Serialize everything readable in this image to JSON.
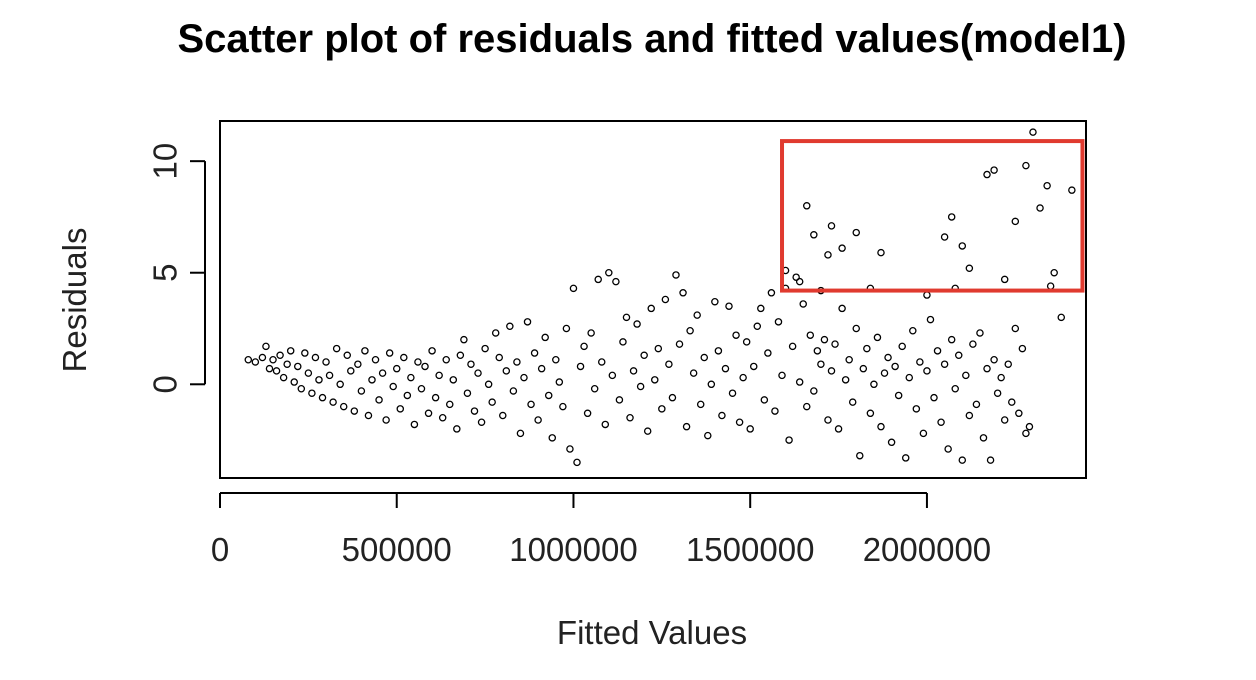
{
  "chart_data": {
    "type": "scatter",
    "title": "Scatter plot of residuals and fitted values(model1)",
    "xlabel": "Fitted Values",
    "ylabel": "Residuals",
    "xlim": [
      0,
      2450000
    ],
    "ylim": [
      -4.2,
      11.8
    ],
    "x_ticks": [
      0,
      500000,
      1000000,
      1500000,
      2000000
    ],
    "y_ticks": [
      0,
      5,
      10
    ],
    "x_tick_labels": [
      "0",
      "500000",
      "1000000",
      "1500000",
      "2000000"
    ],
    "y_tick_labels": [
      "0",
      "5",
      "10"
    ],
    "grid": false,
    "marker": "open-circle",
    "marker_color": "#000000",
    "highlight_region": {
      "x_range": [
        1590000,
        2440000
      ],
      "y_range": [
        4.2,
        10.9
      ],
      "color": "#e03a2f"
    },
    "main_cloud_points": [
      [
        80000,
        1.1
      ],
      [
        100000,
        1.0
      ],
      [
        120000,
        1.2
      ],
      [
        130000,
        1.7
      ],
      [
        140000,
        0.7
      ],
      [
        150000,
        1.1
      ],
      [
        160000,
        0.6
      ],
      [
        170000,
        1.3
      ],
      [
        180000,
        0.3
      ],
      [
        190000,
        0.9
      ],
      [
        200000,
        1.5
      ],
      [
        210000,
        0.1
      ],
      [
        220000,
        0.8
      ],
      [
        230000,
        -0.2
      ],
      [
        240000,
        1.4
      ],
      [
        250000,
        0.5
      ],
      [
        260000,
        -0.4
      ],
      [
        270000,
        1.2
      ],
      [
        280000,
        0.2
      ],
      [
        290000,
        -0.6
      ],
      [
        300000,
        1.0
      ],
      [
        310000,
        0.4
      ],
      [
        320000,
        -0.8
      ],
      [
        330000,
        1.6
      ],
      [
        340000,
        0.0
      ],
      [
        350000,
        -1.0
      ],
      [
        360000,
        1.3
      ],
      [
        370000,
        0.6
      ],
      [
        380000,
        -1.2
      ],
      [
        390000,
        0.9
      ],
      [
        400000,
        -0.3
      ],
      [
        410000,
        1.5
      ],
      [
        420000,
        -1.4
      ],
      [
        430000,
        0.2
      ],
      [
        440000,
        1.1
      ],
      [
        450000,
        -0.7
      ],
      [
        460000,
        0.5
      ],
      [
        470000,
        -1.6
      ],
      [
        480000,
        1.4
      ],
      [
        490000,
        -0.1
      ],
      [
        500000,
        0.7
      ],
      [
        510000,
        -1.1
      ],
      [
        520000,
        1.2
      ],
      [
        530000,
        -0.5
      ],
      [
        540000,
        0.3
      ],
      [
        550000,
        -1.8
      ],
      [
        560000,
        1.0
      ],
      [
        570000,
        -0.2
      ],
      [
        580000,
        0.8
      ],
      [
        590000,
        -1.3
      ],
      [
        600000,
        1.5
      ],
      [
        610000,
        -0.6
      ],
      [
        620000,
        0.4
      ],
      [
        630000,
        -1.5
      ],
      [
        640000,
        1.1
      ],
      [
        650000,
        -0.9
      ],
      [
        660000,
        0.2
      ],
      [
        670000,
        -2.0
      ],
      [
        680000,
        1.3
      ],
      [
        690000,
        2.0
      ],
      [
        700000,
        -0.4
      ],
      [
        710000,
        0.9
      ],
      [
        720000,
        -1.2
      ],
      [
        730000,
        0.5
      ],
      [
        740000,
        -1.7
      ],
      [
        750000,
        1.6
      ],
      [
        760000,
        0.0
      ],
      [
        770000,
        -0.8
      ],
      [
        780000,
        2.3
      ],
      [
        790000,
        1.2
      ],
      [
        800000,
        -1.4
      ],
      [
        810000,
        0.6
      ],
      [
        820000,
        2.6
      ],
      [
        830000,
        -0.3
      ],
      [
        840000,
        1.0
      ],
      [
        850000,
        -2.2
      ],
      [
        860000,
        0.3
      ],
      [
        870000,
        2.8
      ],
      [
        880000,
        -0.9
      ],
      [
        890000,
        1.4
      ],
      [
        900000,
        -1.6
      ],
      [
        910000,
        0.7
      ],
      [
        920000,
        2.1
      ],
      [
        930000,
        -0.5
      ],
      [
        940000,
        -2.4
      ],
      [
        950000,
        1.1
      ],
      [
        960000,
        0.1
      ],
      [
        970000,
        -1.0
      ],
      [
        980000,
        2.5
      ],
      [
        990000,
        -2.9
      ],
      [
        1000000,
        4.3
      ],
      [
        1010000,
        -3.5
      ],
      [
        1020000,
        0.8
      ],
      [
        1030000,
        1.7
      ],
      [
        1040000,
        -1.3
      ],
      [
        1050000,
        2.3
      ],
      [
        1060000,
        -0.2
      ],
      [
        1070000,
        4.7
      ],
      [
        1080000,
        1.0
      ],
      [
        1090000,
        -1.8
      ],
      [
        1100000,
        5.0
      ],
      [
        1110000,
        0.4
      ],
      [
        1120000,
        4.6
      ],
      [
        1130000,
        -0.7
      ],
      [
        1140000,
        1.9
      ],
      [
        1150000,
        3.0
      ],
      [
        1160000,
        -1.5
      ],
      [
        1170000,
        0.6
      ],
      [
        1180000,
        2.7
      ],
      [
        1190000,
        -0.1
      ],
      [
        1200000,
        1.3
      ],
      [
        1210000,
        -2.1
      ],
      [
        1220000,
        3.4
      ],
      [
        1230000,
        0.2
      ],
      [
        1240000,
        1.6
      ],
      [
        1250000,
        -1.1
      ],
      [
        1260000,
        3.8
      ],
      [
        1270000,
        0.9
      ],
      [
        1280000,
        -0.6
      ],
      [
        1290000,
        4.9
      ],
      [
        1300000,
        1.8
      ],
      [
        1310000,
        4.1
      ],
      [
        1320000,
        -1.9
      ],
      [
        1330000,
        2.4
      ],
      [
        1340000,
        0.5
      ],
      [
        1350000,
        3.1
      ],
      [
        1360000,
        -0.9
      ],
      [
        1370000,
        1.2
      ],
      [
        1380000,
        -2.3
      ],
      [
        1390000,
        0.0
      ],
      [
        1400000,
        3.7
      ],
      [
        1410000,
        1.5
      ],
      [
        1420000,
        -1.4
      ],
      [
        1430000,
        0.7
      ],
      [
        1440000,
        3.5
      ],
      [
        1450000,
        -0.4
      ],
      [
        1460000,
        2.2
      ],
      [
        1470000,
        -1.7
      ],
      [
        1480000,
        0.3
      ],
      [
        1490000,
        1.9
      ],
      [
        1500000,
        -2.0
      ],
      [
        1510000,
        0.8
      ],
      [
        1520000,
        2.6
      ],
      [
        1530000,
        3.4
      ],
      [
        1540000,
        -0.7
      ],
      [
        1550000,
        1.4
      ],
      [
        1560000,
        4.1
      ],
      [
        1570000,
        -1.2
      ],
      [
        1580000,
        2.8
      ],
      [
        1590000,
        0.4
      ],
      [
        1600000,
        5.1
      ],
      [
        1610000,
        -2.5
      ],
      [
        1620000,
        1.7
      ],
      [
        1630000,
        4.8
      ],
      [
        1640000,
        0.1
      ],
      [
        1650000,
        3.6
      ],
      [
        1660000,
        -1.0
      ],
      [
        1670000,
        2.2
      ],
      [
        1680000,
        -0.3
      ],
      [
        1690000,
        1.5
      ],
      [
        1700000,
        0.9
      ],
      [
        1710000,
        2.0
      ],
      [
        1720000,
        -1.6
      ],
      [
        1730000,
        0.6
      ],
      [
        1740000,
        1.8
      ],
      [
        1750000,
        -2.0
      ],
      [
        1760000,
        3.4
      ],
      [
        1770000,
        0.2
      ],
      [
        1780000,
        1.1
      ],
      [
        1790000,
        -0.8
      ],
      [
        1800000,
        2.5
      ],
      [
        1810000,
        -3.2
      ],
      [
        1820000,
        0.7
      ],
      [
        1830000,
        1.6
      ],
      [
        1840000,
        -1.3
      ],
      [
        1850000,
        0.0
      ],
      [
        1860000,
        2.1
      ],
      [
        1870000,
        -1.9
      ],
      [
        1880000,
        0.5
      ],
      [
        1890000,
        1.2
      ],
      [
        1900000,
        -2.6
      ],
      [
        1910000,
        0.8
      ],
      [
        1920000,
        -0.5
      ],
      [
        1930000,
        1.7
      ],
      [
        1940000,
        -3.3
      ],
      [
        1950000,
        0.3
      ],
      [
        1960000,
        2.4
      ],
      [
        1970000,
        -1.1
      ],
      [
        1980000,
        1.0
      ],
      [
        1990000,
        -2.2
      ],
      [
        2000000,
        0.6
      ],
      [
        2010000,
        2.9
      ],
      [
        2020000,
        -0.6
      ],
      [
        2030000,
        1.5
      ],
      [
        2040000,
        -1.7
      ],
      [
        2050000,
        0.9
      ],
      [
        2060000,
        -2.9
      ],
      [
        2070000,
        2.0
      ],
      [
        2080000,
        -0.2
      ],
      [
        2090000,
        1.3
      ],
      [
        2100000,
        -3.4
      ],
      [
        2110000,
        0.4
      ],
      [
        2120000,
        -1.4
      ],
      [
        2130000,
        1.8
      ],
      [
        2140000,
        -0.9
      ],
      [
        2150000,
        2.3
      ],
      [
        2160000,
        -2.4
      ],
      [
        2170000,
        0.7
      ],
      [
        2180000,
        -3.4
      ],
      [
        2190000,
        1.1
      ],
      [
        2200000,
        -0.4
      ],
      [
        2210000,
        0.3
      ],
      [
        2220000,
        -1.6
      ],
      [
        2230000,
        0.9
      ],
      [
        2240000,
        -0.8
      ],
      [
        2250000,
        2.5
      ],
      [
        2260000,
        -1.3
      ],
      [
        2270000,
        1.6
      ],
      [
        2280000,
        -2.2
      ],
      [
        2290000,
        -1.9
      ]
    ],
    "highlighted_points": [
      [
        1600000,
        4.3
      ],
      [
        1640000,
        4.6
      ],
      [
        1660000,
        8.0
      ],
      [
        1680000,
        6.7
      ],
      [
        1700000,
        4.2
      ],
      [
        1720000,
        5.8
      ],
      [
        1730000,
        7.1
      ],
      [
        1760000,
        6.1
      ],
      [
        1800000,
        6.8
      ],
      [
        1840000,
        4.3
      ],
      [
        1870000,
        5.9
      ],
      [
        2000000,
        4.0
      ],
      [
        2050000,
        6.6
      ],
      [
        2070000,
        7.5
      ],
      [
        2080000,
        4.3
      ],
      [
        2100000,
        6.2
      ],
      [
        2120000,
        5.2
      ],
      [
        2170000,
        9.4
      ],
      [
        2190000,
        9.6
      ],
      [
        2220000,
        4.7
      ],
      [
        2250000,
        7.3
      ],
      [
        2280000,
        9.8
      ],
      [
        2300000,
        11.3
      ],
      [
        2320000,
        7.9
      ],
      [
        2340000,
        8.9
      ],
      [
        2350000,
        4.4
      ],
      [
        2360000,
        5.0
      ],
      [
        2380000,
        3.0
      ],
      [
        2410000,
        8.7
      ]
    ]
  }
}
